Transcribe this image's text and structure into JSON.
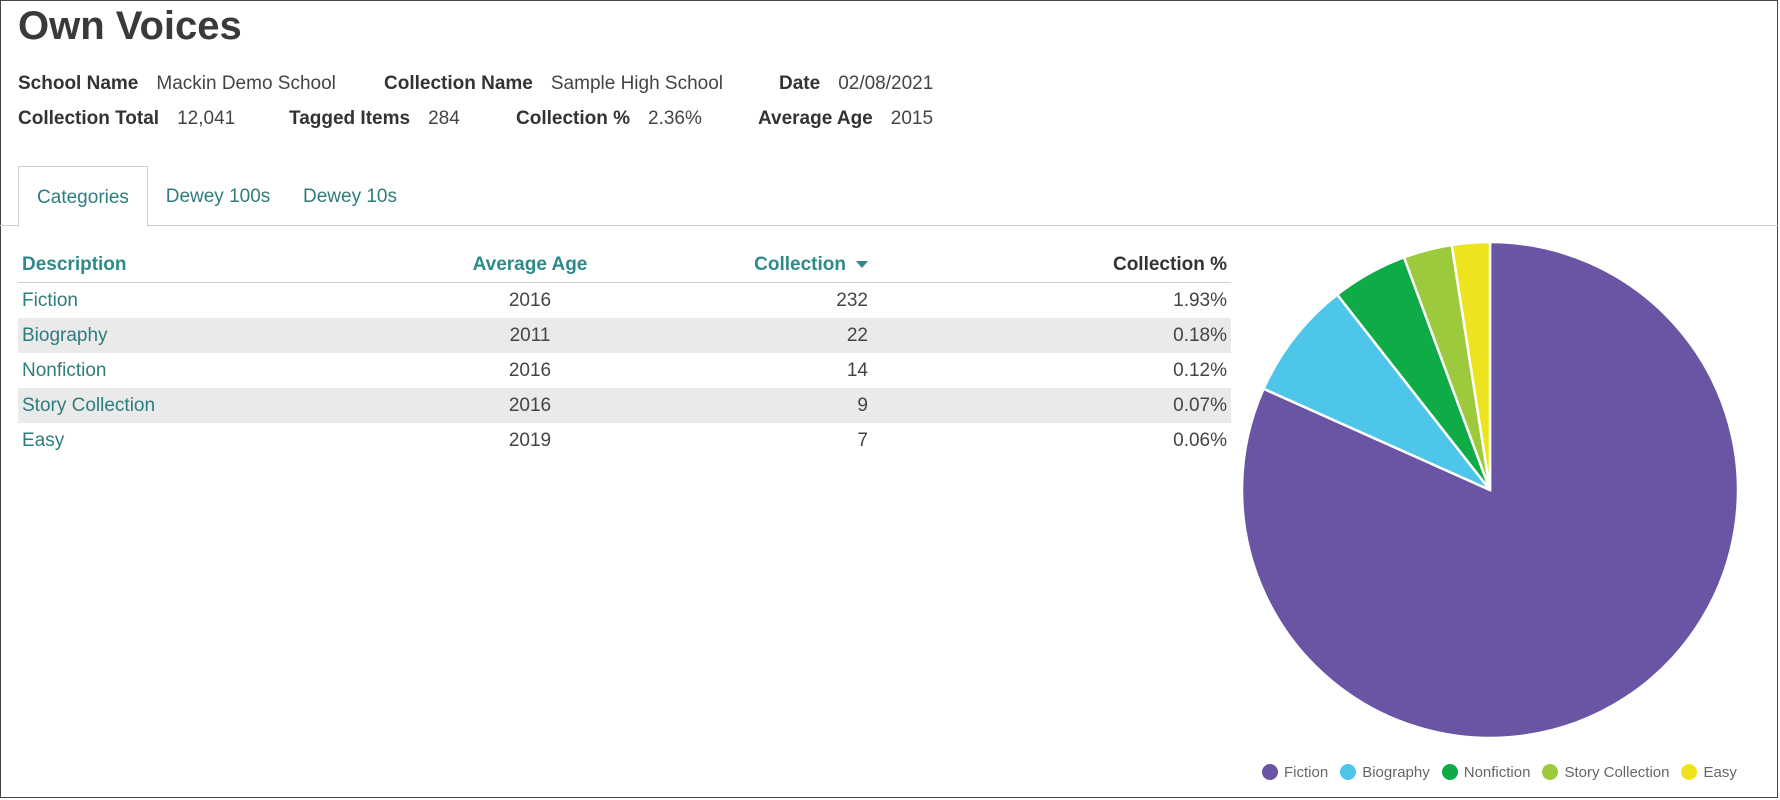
{
  "page": {
    "title": "Own Voices"
  },
  "meta": {
    "school_name_label": "School Name",
    "school_name": "Mackin Demo School",
    "collection_name_label": "Collection Name",
    "collection_name": "Sample High School",
    "date_label": "Date",
    "date": "02/08/2021",
    "collection_total_label": "Collection Total",
    "collection_total": "12,041",
    "tagged_items_label": "Tagged Items",
    "tagged_items": "284",
    "collection_pct_label": "Collection %",
    "collection_pct": "2.36%",
    "average_age_label": "Average Age",
    "average_age": "2015"
  },
  "tabs": [
    {
      "label": "Categories",
      "active": true
    },
    {
      "label": "Dewey 100s",
      "active": false
    },
    {
      "label": "Dewey 10s",
      "active": false
    }
  ],
  "table": {
    "headers": [
      "Description",
      "Average Age",
      "Collection",
      "Collection %"
    ],
    "sort_icon": "caret-down-icon",
    "rows": [
      [
        "Fiction",
        "2016",
        "232",
        "1.93%"
      ],
      [
        "Biography",
        "2011",
        "22",
        "0.18%"
      ],
      [
        "Nonfiction",
        "2016",
        "14",
        "0.12%"
      ],
      [
        "Story Collection",
        "2016",
        "9",
        "0.07%"
      ],
      [
        "Easy",
        "2019",
        "7",
        "0.06%"
      ]
    ]
  },
  "chart_data": {
    "type": "pie",
    "categories": [
      "Fiction",
      "Biography",
      "Nonfiction",
      "Story Collection",
      "Easy"
    ],
    "values": [
      232,
      22,
      14,
      9,
      7
    ],
    "colors": [
      "#6a55a4",
      "#4dc6ea",
      "#0eab46",
      "#9dc93c",
      "#ede41f"
    ],
    "legend_position": "bottom"
  }
}
